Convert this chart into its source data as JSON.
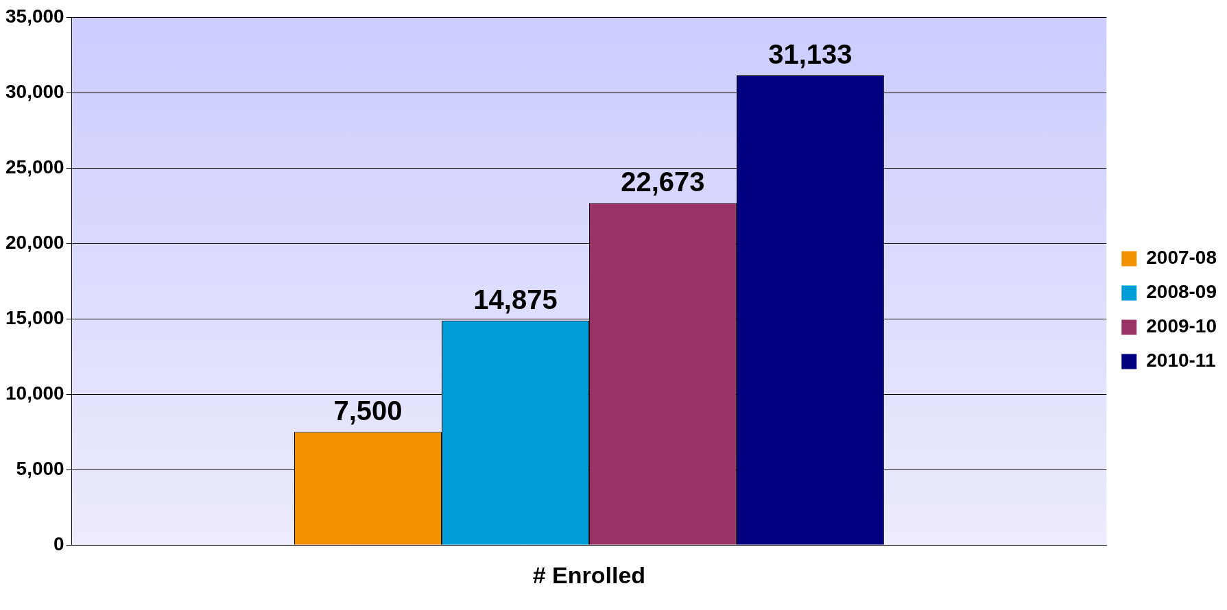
{
  "chart_data": {
    "type": "bar",
    "categories": [
      "# Enrolled"
    ],
    "series": [
      {
        "name": "2007-08",
        "color": "#f39200",
        "values": [
          7500
        ],
        "value_labels": [
          "7,500"
        ]
      },
      {
        "name": "2008-09",
        "color": "#009ed8",
        "values": [
          14875
        ],
        "value_labels": [
          "14,875"
        ]
      },
      {
        "name": "2009-10",
        "color": "#993366",
        "values": [
          22673
        ],
        "value_labels": [
          "22,673"
        ]
      },
      {
        "name": "2010-11",
        "color": "#000080",
        "values": [
          31133
        ],
        "value_labels": [
          "31,133"
        ]
      }
    ],
    "ylim": [
      0,
      35000
    ],
    "yticks": [
      0,
      {
        "value": 5000,
        "label": "5,000"
      },
      {
        "value": 10000,
        "label": "10,000"
      },
      {
        "value": 15000,
        "label": "15,000"
      },
      {
        "value": 20000,
        "label": "20,000"
      },
      {
        "value": 25000,
        "label": "25,000"
      },
      {
        "value": 30000,
        "label": "30,000"
      },
      {
        "value": 35000,
        "label": "35,000"
      }
    ],
    "grid": "y",
    "legend": "right"
  }
}
